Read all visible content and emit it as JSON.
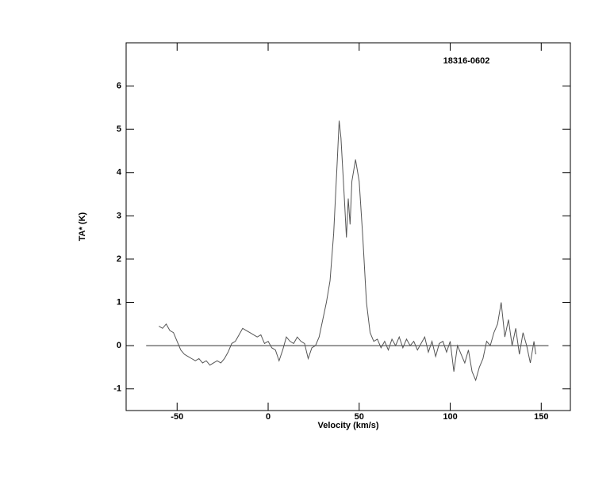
{
  "chart_data": {
    "type": "line",
    "title": "18316-0602",
    "x_label": "Velocity (km/s)",
    "y_label": "TA* (K)",
    "xlim": [
      -78,
      166
    ],
    "ylim": [
      -1.5,
      7
    ],
    "xticks": [
      -50,
      0,
      50,
      100,
      150
    ],
    "yticks": [
      -1,
      0,
      1,
      2,
      3,
      4,
      5,
      6
    ],
    "baseline": {
      "y": 0,
      "x": [
        -67,
        154
      ]
    },
    "series": [
      {
        "color": "#555555",
        "x": [
          -60,
          -58,
          -56,
          -54,
          -52,
          -50,
          -48,
          -46,
          -44,
          -42,
          -40,
          -38,
          -36,
          -34,
          -32,
          -30,
          -28,
          -26,
          -24,
          -22,
          -20,
          -18,
          -16,
          -14,
          -12,
          -10,
          -8,
          -6,
          -4,
          -2,
          0,
          2,
          4,
          6,
          8,
          10,
          12,
          14,
          16,
          18,
          20,
          22,
          24,
          26,
          28,
          30,
          32,
          34,
          36,
          38,
          39,
          40,
          42,
          43,
          44,
          45,
          46,
          48,
          50,
          52,
          54,
          56,
          58,
          60,
          62,
          64,
          66,
          68,
          70,
          72,
          74,
          76,
          78,
          80,
          82,
          84,
          86,
          88,
          90,
          92,
          94,
          96,
          98,
          100,
          102,
          104,
          106,
          108,
          110,
          112,
          114,
          116,
          118,
          120,
          122,
          124,
          126,
          128,
          130,
          132,
          134,
          136,
          138,
          140,
          142,
          144,
          146,
          147
        ],
        "values": [
          0.45,
          0.4,
          0.5,
          0.35,
          0.3,
          0.1,
          -0.1,
          -0.2,
          -0.25,
          -0.3,
          -0.35,
          -0.3,
          -0.4,
          -0.35,
          -0.45,
          -0.4,
          -0.35,
          -0.4,
          -0.3,
          -0.15,
          0.05,
          0.1,
          0.25,
          0.4,
          0.35,
          0.3,
          0.25,
          0.2,
          0.25,
          0.05,
          0.1,
          -0.05,
          -0.1,
          -0.35,
          -0.1,
          0.2,
          0.1,
          0.05,
          0.2,
          0.1,
          0.05,
          -0.3,
          -0.05,
          0.0,
          0.2,
          0.6,
          1.0,
          1.5,
          2.6,
          4.3,
          5.2,
          4.8,
          3.3,
          2.5,
          3.4,
          2.8,
          3.8,
          4.3,
          3.8,
          2.5,
          1.0,
          0.3,
          0.1,
          0.15,
          -0.05,
          0.1,
          -0.1,
          0.15,
          0.0,
          0.2,
          -0.05,
          0.15,
          0.0,
          0.1,
          -0.1,
          0.05,
          0.2,
          -0.15,
          0.1,
          -0.25,
          0.05,
          0.1,
          -0.15,
          0.1,
          -0.6,
          0.0,
          -0.2,
          -0.4,
          -0.1,
          -0.6,
          -0.8,
          -0.5,
          -0.3,
          0.1,
          0.0,
          0.3,
          0.5,
          1.0,
          0.2,
          0.6,
          0.0,
          0.4,
          -0.2,
          0.3,
          0.0,
          -0.4,
          0.1,
          -0.2
        ]
      }
    ]
  }
}
